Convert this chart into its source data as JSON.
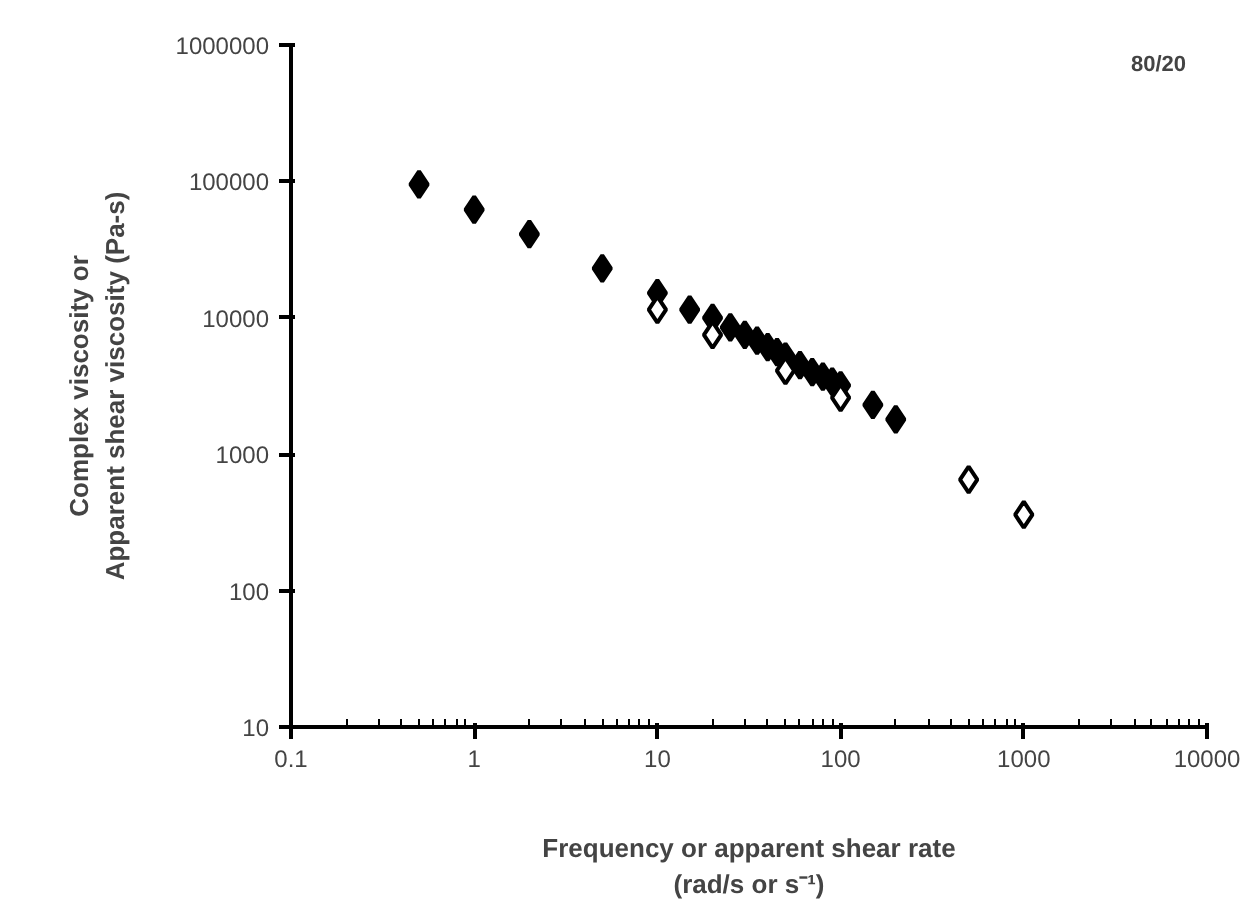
{
  "chart_data": {
    "type": "scatter",
    "xlabel": "Frequency or apparent shear rate\n(rad/s or s⁻¹)",
    "ylabel": "Complex viscosity or\nApparent shear viscosity (Pa-s)",
    "annotations": [
      "80/20"
    ],
    "log": "xy",
    "grid": false,
    "marker": "diamond",
    "xlim": [
      0.1,
      10000
    ],
    "xticks": [
      0.1,
      1,
      10,
      100,
      1000,
      10000
    ],
    "ylim": [
      10,
      1000000
    ],
    "yticks": [
      10,
      100,
      1000,
      10000,
      100000,
      1000000
    ],
    "series": [
      {
        "color": "#000000",
        "x": [
          0.5,
          1,
          2,
          5,
          10,
          15,
          20,
          25,
          30,
          35,
          40,
          45,
          50,
          60,
          70,
          80,
          90,
          100,
          150,
          200
        ],
        "values": [
          95000,
          62000,
          41000,
          23000,
          15200,
          11500,
          10000,
          8500,
          7500,
          6800,
          6100,
          5600,
          5200,
          4500,
          4000,
          3700,
          3400,
          3200,
          2300,
          1800
        ]
      },
      {
        "color": "#000000",
        "x": [
          10,
          20,
          50,
          100,
          500,
          1000
        ],
        "values": [
          11500,
          7500,
          4100,
          2600,
          650,
          360
        ]
      }
    ]
  }
}
